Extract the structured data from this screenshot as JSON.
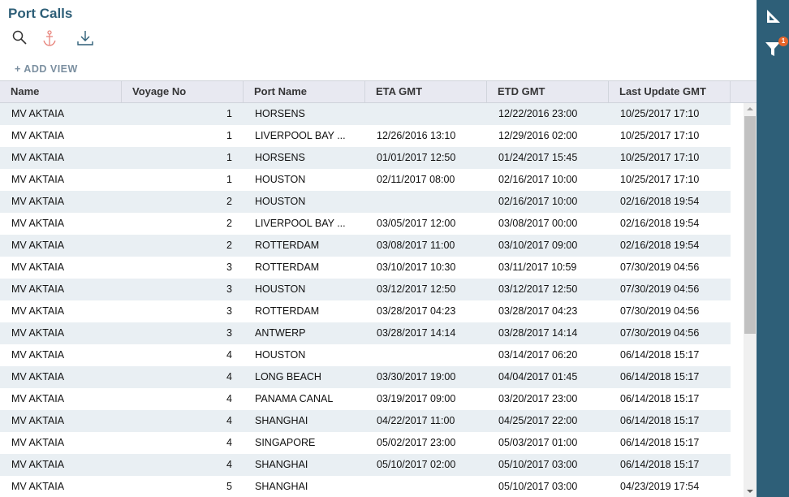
{
  "header": {
    "title": "Port Calls",
    "add_view": "+ ADD VIEW"
  },
  "toolbar": {
    "icons": [
      "search-icon",
      "anchor-icon",
      "download-icon"
    ],
    "anchor_color": "#e8877f"
  },
  "sidebar": {
    "icons": [
      "set-square-icon",
      "filter-icon"
    ],
    "filter_badge": "1",
    "color": "#2e5f78",
    "badge_color": "#e8662b"
  },
  "table": {
    "columns": [
      "Name",
      "Voyage No",
      "Port Name",
      "ETA GMT",
      "ETD GMT",
      "Last Update GMT"
    ],
    "rows": [
      [
        "MV AKTAIA",
        "1",
        "HORSENS",
        "",
        "12/22/2016 23:00",
        "10/25/2017 17:10"
      ],
      [
        "MV AKTAIA",
        "1",
        "LIVERPOOL BAY ...",
        "12/26/2016 13:10",
        "12/29/2016 02:00",
        "10/25/2017 17:10"
      ],
      [
        "MV AKTAIA",
        "1",
        "HORSENS",
        "01/01/2017 12:50",
        "01/24/2017 15:45",
        "10/25/2017 17:10"
      ],
      [
        "MV AKTAIA",
        "1",
        "HOUSTON",
        "02/11/2017 08:00",
        "02/16/2017 10:00",
        "10/25/2017 17:10"
      ],
      [
        "MV AKTAIA",
        "2",
        "HOUSTON",
        "",
        "02/16/2017 10:00",
        "02/16/2018 19:54"
      ],
      [
        "MV AKTAIA",
        "2",
        "LIVERPOOL BAY ...",
        "03/05/2017 12:00",
        "03/08/2017 00:00",
        "02/16/2018 19:54"
      ],
      [
        "MV AKTAIA",
        "2",
        "ROTTERDAM",
        "03/08/2017 11:00",
        "03/10/2017 09:00",
        "02/16/2018 19:54"
      ],
      [
        "MV AKTAIA",
        "3",
        "ROTTERDAM",
        "03/10/2017 10:30",
        "03/11/2017 10:59",
        "07/30/2019 04:56"
      ],
      [
        "MV AKTAIA",
        "3",
        "HOUSTON",
        "03/12/2017 12:50",
        "03/12/2017 12:50",
        "07/30/2019 04:56"
      ],
      [
        "MV AKTAIA",
        "3",
        "ROTTERDAM",
        "03/28/2017 04:23",
        "03/28/2017 04:23",
        "07/30/2019 04:56"
      ],
      [
        "MV AKTAIA",
        "3",
        "ANTWERP",
        "03/28/2017 14:14",
        "03/28/2017 14:14",
        "07/30/2019 04:56"
      ],
      [
        "MV AKTAIA",
        "4",
        "HOUSTON",
        "",
        "03/14/2017 06:20",
        "06/14/2018 15:17"
      ],
      [
        "MV AKTAIA",
        "4",
        "LONG BEACH",
        "03/30/2017 19:00",
        "04/04/2017 01:45",
        "06/14/2018 15:17"
      ],
      [
        "MV AKTAIA",
        "4",
        "PANAMA CANAL",
        "03/19/2017 09:00",
        "03/20/2017 23:00",
        "06/14/2018 15:17"
      ],
      [
        "MV AKTAIA",
        "4",
        "SHANGHAI",
        "04/22/2017 11:00",
        "04/25/2017 22:00",
        "06/14/2018 15:17"
      ],
      [
        "MV AKTAIA",
        "4",
        "SINGAPORE",
        "05/02/2017 23:00",
        "05/03/2017 01:00",
        "06/14/2018 15:17"
      ],
      [
        "MV AKTAIA",
        "4",
        "SHANGHAI",
        "05/10/2017 02:00",
        "05/10/2017 03:00",
        "06/14/2018 15:17"
      ],
      [
        "MV AKTAIA",
        "5",
        "SHANGHAI",
        "",
        "05/10/2017 03:00",
        "04/23/2019 17:54"
      ]
    ]
  }
}
